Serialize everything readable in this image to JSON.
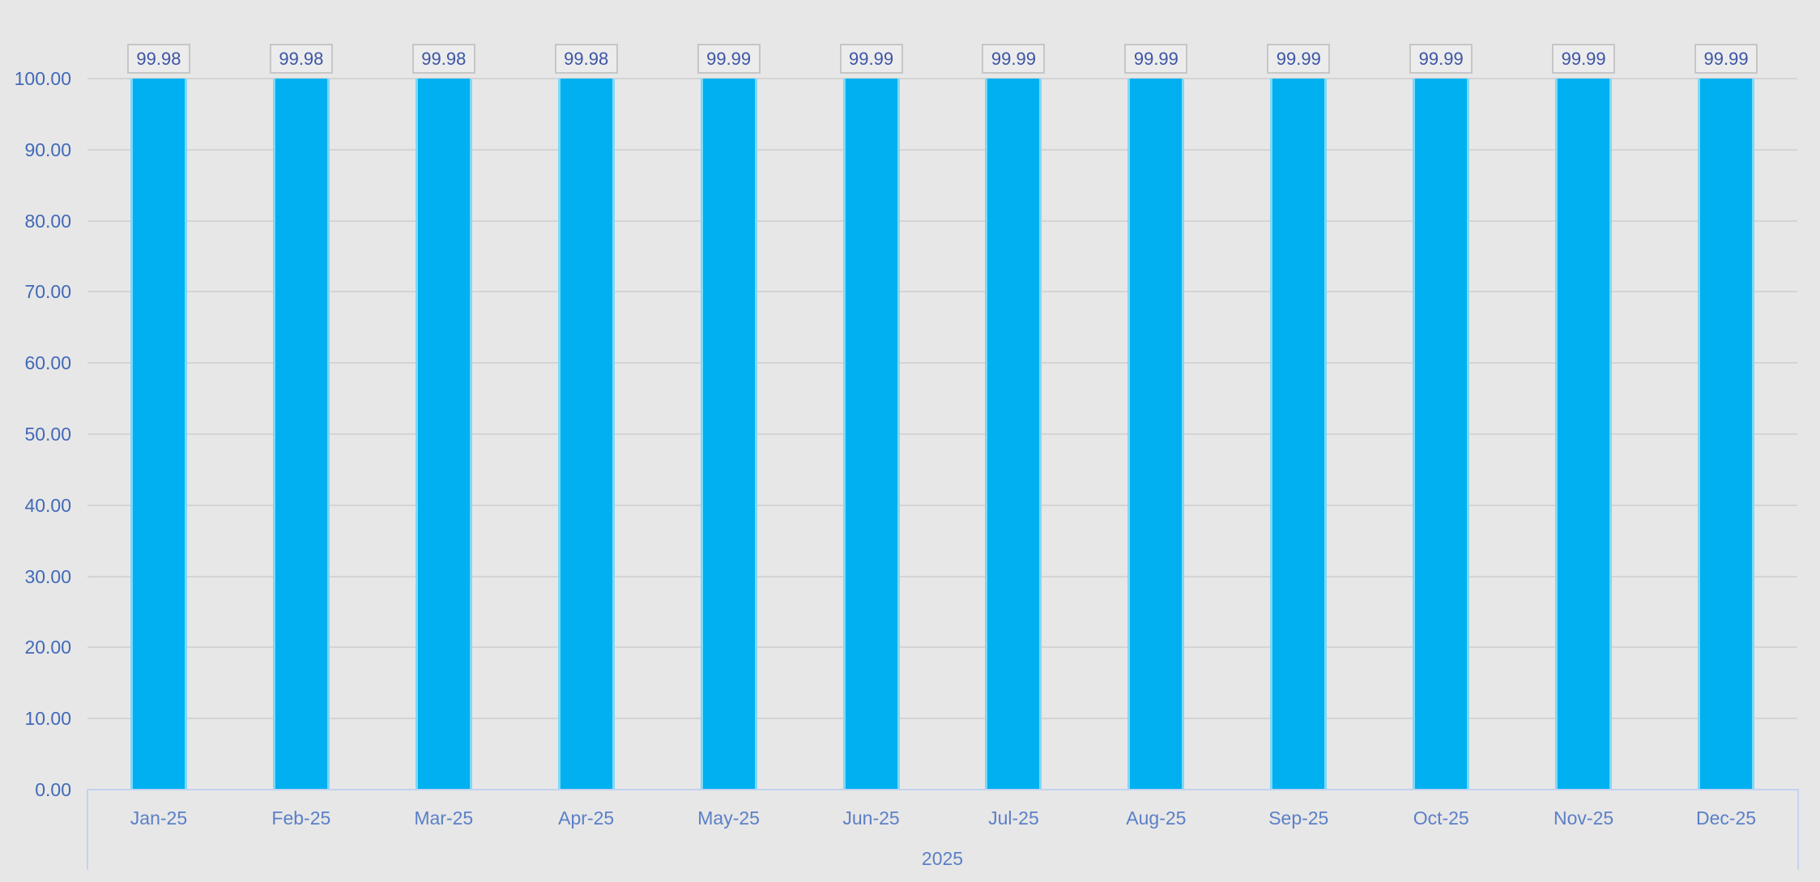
{
  "chart_data": {
    "type": "bar",
    "title": "",
    "categories": [
      "Jan-25",
      "Feb-25",
      "Mar-25",
      "Apr-25",
      "May-25",
      "Jun-25",
      "Jul-25",
      "Aug-25",
      "Sep-25",
      "Oct-25",
      "Nov-25",
      "Dec-25"
    ],
    "values": [
      99.98,
      99.98,
      99.98,
      99.98,
      99.99,
      99.99,
      99.99,
      99.99,
      99.99,
      99.99,
      99.99,
      99.99
    ],
    "data_labels": [
      "99.98",
      "99.98",
      "99.98",
      "99.98",
      "99.99",
      "99.99",
      "99.99",
      "99.99",
      "99.99",
      "99.99",
      "99.99",
      "99.99"
    ],
    "y_ticks": [
      "100.00",
      "90.00",
      "80.00",
      "70.00",
      "60.00",
      "50.00",
      "40.00",
      "30.00",
      "20.00",
      "10.00",
      "0.00"
    ],
    "y_tick_values": [
      100,
      90,
      80,
      70,
      60,
      50,
      40,
      30,
      20,
      10,
      0
    ],
    "ylim": [
      0,
      100
    ],
    "x_group_label": "2025",
    "xlabel": "",
    "ylabel": "",
    "grid": true,
    "legend": false,
    "colors": {
      "background": "#e7e7e7",
      "bar_fill": "#00b0f0",
      "bar_edge": "#7dd9f8",
      "gridline": "#d4d4d4",
      "axis_frame": "#c3d2ef",
      "tick_text": "#4169b8",
      "category_text": "#5b7fc7",
      "data_label_text": "#3d55a5",
      "data_label_fill": "#ececec",
      "data_label_border": "#c6c6c6"
    }
  }
}
